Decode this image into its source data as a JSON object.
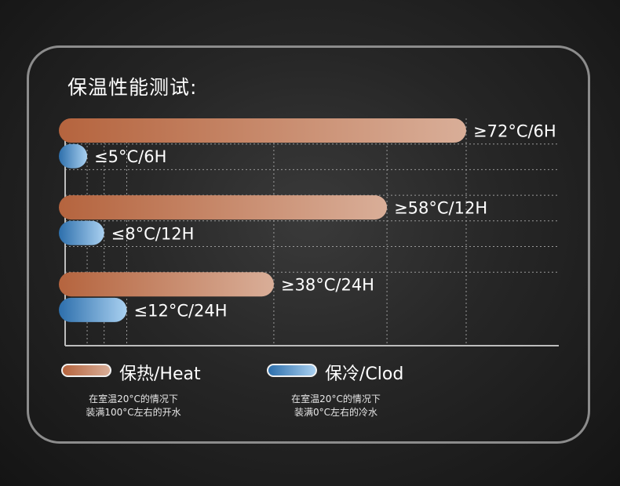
{
  "title": "保温性能测试:",
  "colors": {
    "heat_start": "#b5643e",
    "heat_end": "#d9ae98",
    "cold_start": "#2d6fac",
    "cold_end": "#a9d0f0"
  },
  "legend": {
    "heat_label": "保热/Heat",
    "cold_label": "保冷/Clod"
  },
  "notes": {
    "heat": [
      "在室温20°C的情况下",
      "装满100°C左右的开水"
    ],
    "cold": [
      "在室温20°C的情况下",
      "装满0°C左右的冷水"
    ]
  },
  "chart_data": {
    "type": "bar",
    "orientation": "horizontal",
    "grid": true,
    "bars": [
      {
        "series": "heat",
        "label": "≥72°C/6H",
        "value": 72
      },
      {
        "series": "cold",
        "label": "≤5°C/6H",
        "value": 5
      },
      {
        "series": "heat",
        "label": "≥58°C/12H",
        "value": 58
      },
      {
        "series": "cold",
        "label": "≤8°C/12H",
        "value": 8
      },
      {
        "series": "heat",
        "label": "≥38°C/24H",
        "value": 38
      },
      {
        "series": "cold",
        "label": "≤12°C/24H",
        "value": 12
      }
    ]
  }
}
